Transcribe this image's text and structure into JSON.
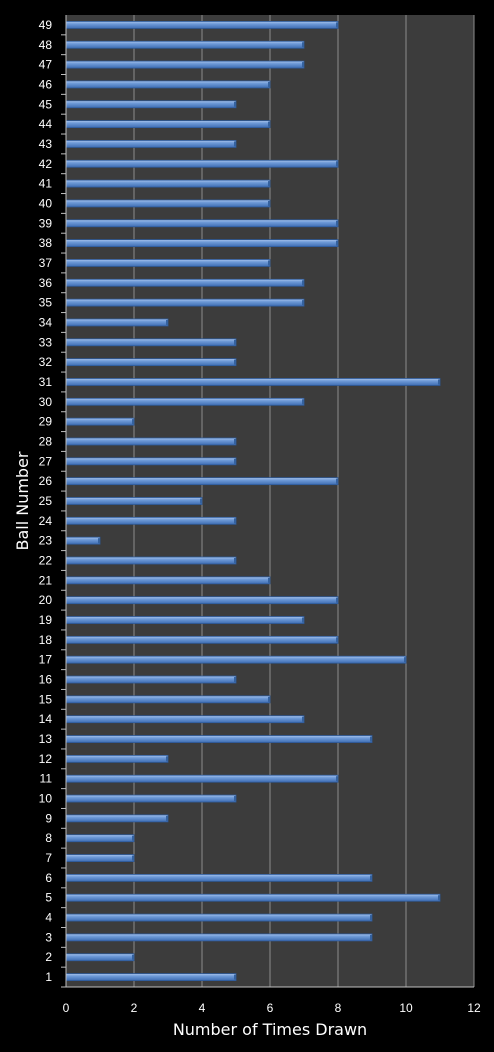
{
  "chart_data": {
    "type": "bar",
    "orientation": "horizontal",
    "xlabel": "Number of Times Drawn",
    "ylabel": "Ball Number",
    "xlim": [
      0,
      12
    ],
    "xticks": [
      0,
      2,
      4,
      6,
      8,
      10,
      12
    ],
    "grid": true,
    "colors": {
      "background": "#000000",
      "plot_area": "#3c3c3c",
      "gridline": "#8c8c8c",
      "bar": "#4f81bd",
      "text": "#ffffff"
    },
    "categories": [
      "1",
      "2",
      "3",
      "4",
      "5",
      "6",
      "7",
      "8",
      "9",
      "10",
      "11",
      "12",
      "13",
      "14",
      "15",
      "16",
      "17",
      "18",
      "19",
      "20",
      "21",
      "22",
      "23",
      "24",
      "25",
      "26",
      "27",
      "28",
      "29",
      "30",
      "31",
      "32",
      "33",
      "34",
      "35",
      "36",
      "37",
      "38",
      "39",
      "40",
      "41",
      "42",
      "43",
      "44",
      "45",
      "46",
      "47",
      "48",
      "49"
    ],
    "values": [
      5,
      2,
      9,
      9,
      11,
      9,
      2,
      2,
      3,
      5,
      8,
      3,
      9,
      7,
      6,
      5,
      10,
      8,
      7,
      8,
      6,
      5,
      1,
      5,
      4,
      8,
      5,
      5,
      2,
      7,
      11,
      5,
      5,
      3,
      7,
      7,
      6,
      8,
      8,
      6,
      6,
      8,
      5,
      6,
      5,
      6,
      7,
      7,
      8
    ]
  }
}
